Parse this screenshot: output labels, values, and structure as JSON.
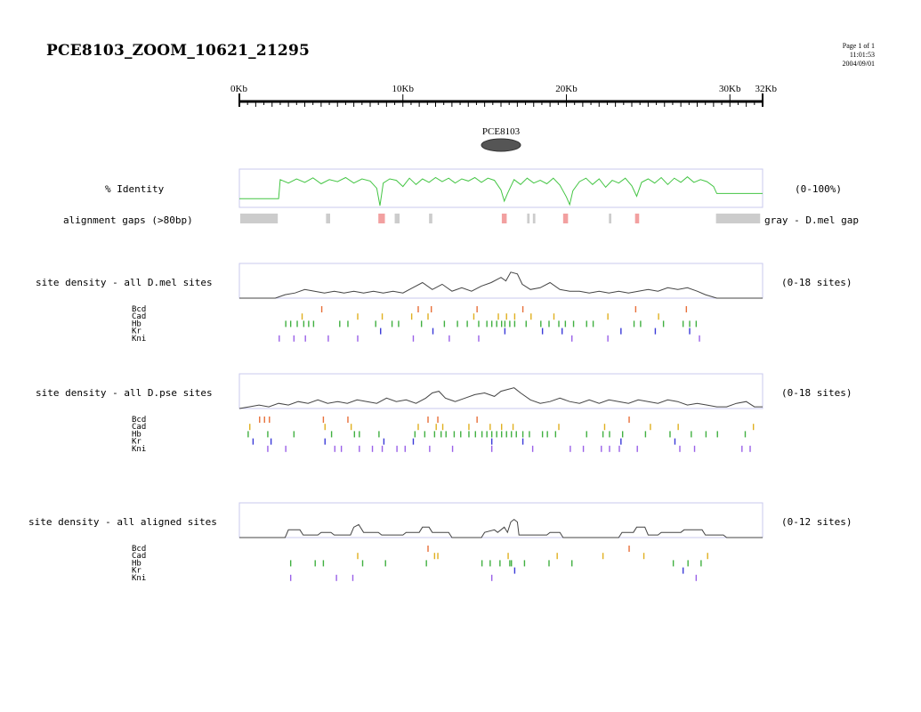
{
  "page": {
    "title": "PCE8103_ZOOM_10621_21295",
    "page_label": "Page 1 of 1",
    "time": "11:01:53",
    "date": "2004/09/01"
  },
  "chart_data": {
    "type": "line",
    "ruler": {
      "min": 0,
      "max": 32,
      "unit": "Kb",
      "labels": [
        {
          "value": 0,
          "text": "0Kb"
        },
        {
          "value": 10,
          "text": "10Kb"
        },
        {
          "value": 20,
          "text": "20Kb"
        },
        {
          "value": 30,
          "text": "30Kb"
        },
        {
          "value": 32,
          "text": "32Kb"
        }
      ]
    },
    "element": {
      "label": "PCE8103",
      "start": 14.8,
      "end": 17.2
    },
    "identity": {
      "label": "% Identity",
      "range": "(0-100%)",
      "ylim": [
        0,
        100
      ],
      "points": [
        [
          0,
          25
        ],
        [
          2.4,
          25
        ],
        [
          2.5,
          80
        ],
        [
          3,
          70
        ],
        [
          3.5,
          82
        ],
        [
          4,
          72
        ],
        [
          4.5,
          85
        ],
        [
          5,
          68
        ],
        [
          5.5,
          80
        ],
        [
          6,
          74
        ],
        [
          6.5,
          86
        ],
        [
          7,
          70
        ],
        [
          7.5,
          82
        ],
        [
          8,
          76
        ],
        [
          8.4,
          55
        ],
        [
          8.6,
          5
        ],
        [
          8.8,
          70
        ],
        [
          9.2,
          82
        ],
        [
          9.6,
          78
        ],
        [
          10,
          60
        ],
        [
          10.4,
          84
        ],
        [
          10.8,
          66
        ],
        [
          11.2,
          82
        ],
        [
          11.6,
          72
        ],
        [
          12,
          86
        ],
        [
          12.4,
          74
        ],
        [
          12.8,
          84
        ],
        [
          13.2,
          70
        ],
        [
          13.6,
          82
        ],
        [
          14,
          76
        ],
        [
          14.4,
          86
        ],
        [
          14.8,
          72
        ],
        [
          15.2,
          84
        ],
        [
          15.6,
          78
        ],
        [
          16,
          50
        ],
        [
          16.2,
          18
        ],
        [
          16.4,
          40
        ],
        [
          16.8,
          80
        ],
        [
          17.2,
          66
        ],
        [
          17.6,
          84
        ],
        [
          18,
          70
        ],
        [
          18.4,
          78
        ],
        [
          18.8,
          68
        ],
        [
          19.2,
          84
        ],
        [
          19.6,
          64
        ],
        [
          20,
          30
        ],
        [
          20.2,
          8
        ],
        [
          20.4,
          48
        ],
        [
          20.8,
          74
        ],
        [
          21.2,
          84
        ],
        [
          21.6,
          66
        ],
        [
          22,
          82
        ],
        [
          22.4,
          58
        ],
        [
          22.8,
          78
        ],
        [
          23.2,
          70
        ],
        [
          23.6,
          84
        ],
        [
          24,
          62
        ],
        [
          24.3,
          32
        ],
        [
          24.6,
          72
        ],
        [
          25,
          82
        ],
        [
          25.4,
          70
        ],
        [
          25.8,
          86
        ],
        [
          26.2,
          66
        ],
        [
          26.6,
          84
        ],
        [
          27,
          72
        ],
        [
          27.4,
          88
        ],
        [
          27.8,
          72
        ],
        [
          28.2,
          80
        ],
        [
          28.6,
          74
        ],
        [
          29,
          60
        ],
        [
          29.2,
          40
        ],
        [
          32,
          40
        ]
      ]
    },
    "gaps": {
      "label": "alignment gaps (>80bp)",
      "legend": "gray - D.mel gap",
      "colors": {
        "gray": "#cccccc",
        "red": "#f2a0a0"
      },
      "segments": [
        {
          "start": 0.05,
          "end": 2.35,
          "color": "gray"
        },
        {
          "start": 5.3,
          "end": 5.55,
          "color": "gray"
        },
        {
          "start": 8.5,
          "end": 8.9,
          "color": "red"
        },
        {
          "start": 9.5,
          "end": 9.8,
          "color": "gray"
        },
        {
          "start": 11.6,
          "end": 11.8,
          "color": "gray"
        },
        {
          "start": 16.05,
          "end": 16.35,
          "color": "red"
        },
        {
          "start": 17.6,
          "end": 17.75,
          "color": "gray"
        },
        {
          "start": 17.95,
          "end": 18.1,
          "color": "gray"
        },
        {
          "start": 19.8,
          "end": 20.1,
          "color": "red"
        },
        {
          "start": 22.6,
          "end": 22.75,
          "color": "gray"
        },
        {
          "start": 24.2,
          "end": 24.45,
          "color": "red"
        },
        {
          "start": 29.15,
          "end": 31.85,
          "color": "gray"
        }
      ]
    },
    "tf_colors": {
      "Bcd": "#e8703a",
      "Cad": "#e0b020",
      "Hb": "#40b040",
      "Kr": "#3a3ad8",
      "Kni": "#9a60e8"
    },
    "density_tracks": [
      {
        "label": "site density - all D.mel sites",
        "range": "(0-18 sites)",
        "ymax": 18,
        "points": [
          [
            0,
            0
          ],
          [
            2.2,
            0
          ],
          [
            2.8,
            2
          ],
          [
            3.4,
            3
          ],
          [
            4,
            5
          ],
          [
            4.6,
            4
          ],
          [
            5.2,
            3
          ],
          [
            5.8,
            4
          ],
          [
            6.4,
            3
          ],
          [
            7,
            4
          ],
          [
            7.6,
            3
          ],
          [
            8.2,
            4
          ],
          [
            8.8,
            3
          ],
          [
            9.4,
            4
          ],
          [
            10,
            3
          ],
          [
            10.6,
            6
          ],
          [
            11.2,
            9
          ],
          [
            11.8,
            5
          ],
          [
            12.4,
            8
          ],
          [
            13,
            4
          ],
          [
            13.6,
            6
          ],
          [
            14.2,
            4
          ],
          [
            14.8,
            7
          ],
          [
            15.4,
            9
          ],
          [
            16,
            12
          ],
          [
            16.3,
            10
          ],
          [
            16.6,
            15
          ],
          [
            17,
            14
          ],
          [
            17.3,
            8
          ],
          [
            17.8,
            5
          ],
          [
            18.4,
            6
          ],
          [
            19,
            9
          ],
          [
            19.6,
            5
          ],
          [
            20.2,
            4
          ],
          [
            20.8,
            4
          ],
          [
            21.4,
            3
          ],
          [
            22,
            4
          ],
          [
            22.6,
            3
          ],
          [
            23.2,
            4
          ],
          [
            23.8,
            3
          ],
          [
            24.4,
            4
          ],
          [
            25,
            5
          ],
          [
            25.6,
            4
          ],
          [
            26.2,
            6
          ],
          [
            26.8,
            5
          ],
          [
            27.4,
            6
          ],
          [
            28,
            4
          ],
          [
            28.5,
            2
          ],
          [
            29.2,
            0
          ],
          [
            32,
            0
          ]
        ],
        "sites": {
          "Bcd": [
            5,
            10.9,
            11.7,
            14.5,
            17.3,
            24.2,
            27.3
          ],
          "Cad": [
            3.8,
            7.2,
            8.7,
            10.5,
            11.5,
            14.3,
            15.8,
            16.3,
            16.8,
            17.8,
            19.2,
            22.5,
            25.6
          ],
          "Hb": [
            2.8,
            3.1,
            3.5,
            3.9,
            4.2,
            4.5,
            6.1,
            6.6,
            8.3,
            9.3,
            9.7,
            11.1,
            12.5,
            13.3,
            13.9,
            14.6,
            15.1,
            15.4,
            15.7,
            16,
            16.2,
            16.5,
            16.8,
            17.5,
            18.4,
            18.9,
            19.5,
            19.9,
            20.4,
            21.2,
            21.6,
            24.1,
            24.5,
            25.9,
            27.1,
            27.5,
            27.9
          ],
          "Kr": [
            8.6,
            11.8,
            16.2,
            18.5,
            19.7,
            23.3,
            25.4,
            27.5
          ],
          "Kni": [
            2.4,
            3.3,
            4,
            5.4,
            7.2,
            10.6,
            12.8,
            14.6,
            20.3,
            22.5,
            28.1
          ]
        }
      },
      {
        "label": "site density - all D.pse sites",
        "range": "(0-18 sites)",
        "ymax": 18,
        "points": [
          [
            0,
            0
          ],
          [
            0.6,
            1
          ],
          [
            1.2,
            2
          ],
          [
            1.8,
            1
          ],
          [
            2.4,
            3
          ],
          [
            3,
            2
          ],
          [
            3.6,
            4
          ],
          [
            4.2,
            3
          ],
          [
            4.8,
            5
          ],
          [
            5.4,
            3
          ],
          [
            6,
            4
          ],
          [
            6.6,
            3
          ],
          [
            7.2,
            5
          ],
          [
            7.8,
            4
          ],
          [
            8.4,
            3
          ],
          [
            9,
            6
          ],
          [
            9.6,
            4
          ],
          [
            10.2,
            5
          ],
          [
            10.8,
            3
          ],
          [
            11.4,
            6
          ],
          [
            11.8,
            9
          ],
          [
            12.2,
            10
          ],
          [
            12.6,
            6
          ],
          [
            13.2,
            4
          ],
          [
            13.8,
            6
          ],
          [
            14.4,
            8
          ],
          [
            15,
            9
          ],
          [
            15.6,
            7
          ],
          [
            16,
            10
          ],
          [
            16.4,
            11
          ],
          [
            16.8,
            12
          ],
          [
            17.2,
            9
          ],
          [
            17.8,
            5
          ],
          [
            18.4,
            3
          ],
          [
            19,
            4
          ],
          [
            19.6,
            6
          ],
          [
            20.2,
            4
          ],
          [
            20.8,
            3
          ],
          [
            21.4,
            5
          ],
          [
            22,
            3
          ],
          [
            22.6,
            5
          ],
          [
            23.2,
            4
          ],
          [
            23.8,
            3
          ],
          [
            24.4,
            5
          ],
          [
            25,
            4
          ],
          [
            25.6,
            3
          ],
          [
            26.2,
            5
          ],
          [
            26.8,
            4
          ],
          [
            27.4,
            2
          ],
          [
            28,
            3
          ],
          [
            28.6,
            2
          ],
          [
            29.2,
            1
          ],
          [
            29.8,
            1
          ],
          [
            30.4,
            3
          ],
          [
            31,
            4
          ],
          [
            31.5,
            1
          ],
          [
            32,
            1
          ]
        ],
        "sites": {
          "Bcd": [
            1.2,
            1.5,
            1.8,
            5.1,
            6.6,
            11.5,
            12.1,
            14.5,
            23.8
          ],
          "Cad": [
            0.6,
            5.2,
            6.8,
            10.9,
            12,
            12.4,
            14,
            15.3,
            16,
            16.7,
            19.5,
            22.3,
            25.1,
            26.8,
            31.4
          ],
          "Hb": [
            0.5,
            1.7,
            3.3,
            5.6,
            7,
            7.3,
            8.5,
            10.7,
            11.3,
            11.9,
            12.3,
            12.6,
            13.1,
            13.5,
            14,
            14.4,
            14.8,
            15.1,
            15.4,
            15.7,
            16,
            16.3,
            16.6,
            16.9,
            17.3,
            17.7,
            18.5,
            18.8,
            19.3,
            21.2,
            22.2,
            22.6,
            23.4,
            24.8,
            26.3,
            27.6,
            28.5,
            29.2,
            30.9
          ],
          "Kr": [
            0.8,
            1.9,
            5.2,
            8.8,
            10.6,
            15.4,
            17.3,
            23.3,
            26.6
          ],
          "Kni": [
            1.7,
            2.8,
            5.8,
            6.2,
            7.3,
            8.1,
            8.7,
            9.6,
            10.1,
            11.6,
            13,
            15.4,
            17.9,
            20.2,
            21,
            22.1,
            22.6,
            23.2,
            24.3,
            26.9,
            27.8,
            30.7,
            31.2
          ]
        }
      },
      {
        "label": "site density - all aligned sites",
        "range": "(0-12 sites)",
        "ymax": 12,
        "points": [
          [
            0,
            0
          ],
          [
            2.8,
            0
          ],
          [
            3,
            3
          ],
          [
            3.7,
            3
          ],
          [
            3.9,
            1
          ],
          [
            4.8,
            1
          ],
          [
            5,
            2
          ],
          [
            5.6,
            2
          ],
          [
            5.8,
            1
          ],
          [
            6.8,
            1
          ],
          [
            7,
            4
          ],
          [
            7.3,
            5
          ],
          [
            7.6,
            2
          ],
          [
            8.5,
            2
          ],
          [
            8.7,
            1
          ],
          [
            10,
            1
          ],
          [
            10.2,
            2
          ],
          [
            11,
            2
          ],
          [
            11.2,
            4
          ],
          [
            11.6,
            4
          ],
          [
            11.8,
            2
          ],
          [
            12.8,
            2
          ],
          [
            13,
            0
          ],
          [
            14.8,
            0
          ],
          [
            15,
            2
          ],
          [
            15.6,
            3
          ],
          [
            15.8,
            2
          ],
          [
            16.2,
            4
          ],
          [
            16.4,
            2
          ],
          [
            16.6,
            6
          ],
          [
            16.8,
            7
          ],
          [
            17,
            6
          ],
          [
            17.1,
            1
          ],
          [
            18.8,
            1
          ],
          [
            19,
            2
          ],
          [
            19.6,
            2
          ],
          [
            19.8,
            0
          ],
          [
            23.2,
            0
          ],
          [
            23.4,
            2
          ],
          [
            24.1,
            2
          ],
          [
            24.3,
            4
          ],
          [
            24.8,
            4
          ],
          [
            25,
            1
          ],
          [
            25.6,
            1
          ],
          [
            25.8,
            2
          ],
          [
            27,
            2
          ],
          [
            27.2,
            3
          ],
          [
            28.3,
            3
          ],
          [
            28.5,
            1
          ],
          [
            29.6,
            1
          ],
          [
            29.8,
            0
          ],
          [
            32,
            0
          ]
        ],
        "sites": {
          "Bcd": [
            11.5,
            23.8
          ],
          "Cad": [
            7.2,
            11.9,
            12.1,
            16.4,
            19.4,
            22.2,
            24.7,
            28.6
          ],
          "Hb": [
            3.1,
            4.6,
            5.1,
            7.5,
            8.9,
            11.4,
            14.8,
            15.3,
            15.9,
            16.5,
            16.6,
            17.4,
            18.9,
            20.3,
            26.5,
            27.4,
            28.2
          ],
          "Kr": [
            16.8,
            27.1
          ],
          "Kni": [
            3.1,
            5.9,
            6.9,
            15.4,
            27.9
          ]
        }
      }
    ]
  }
}
